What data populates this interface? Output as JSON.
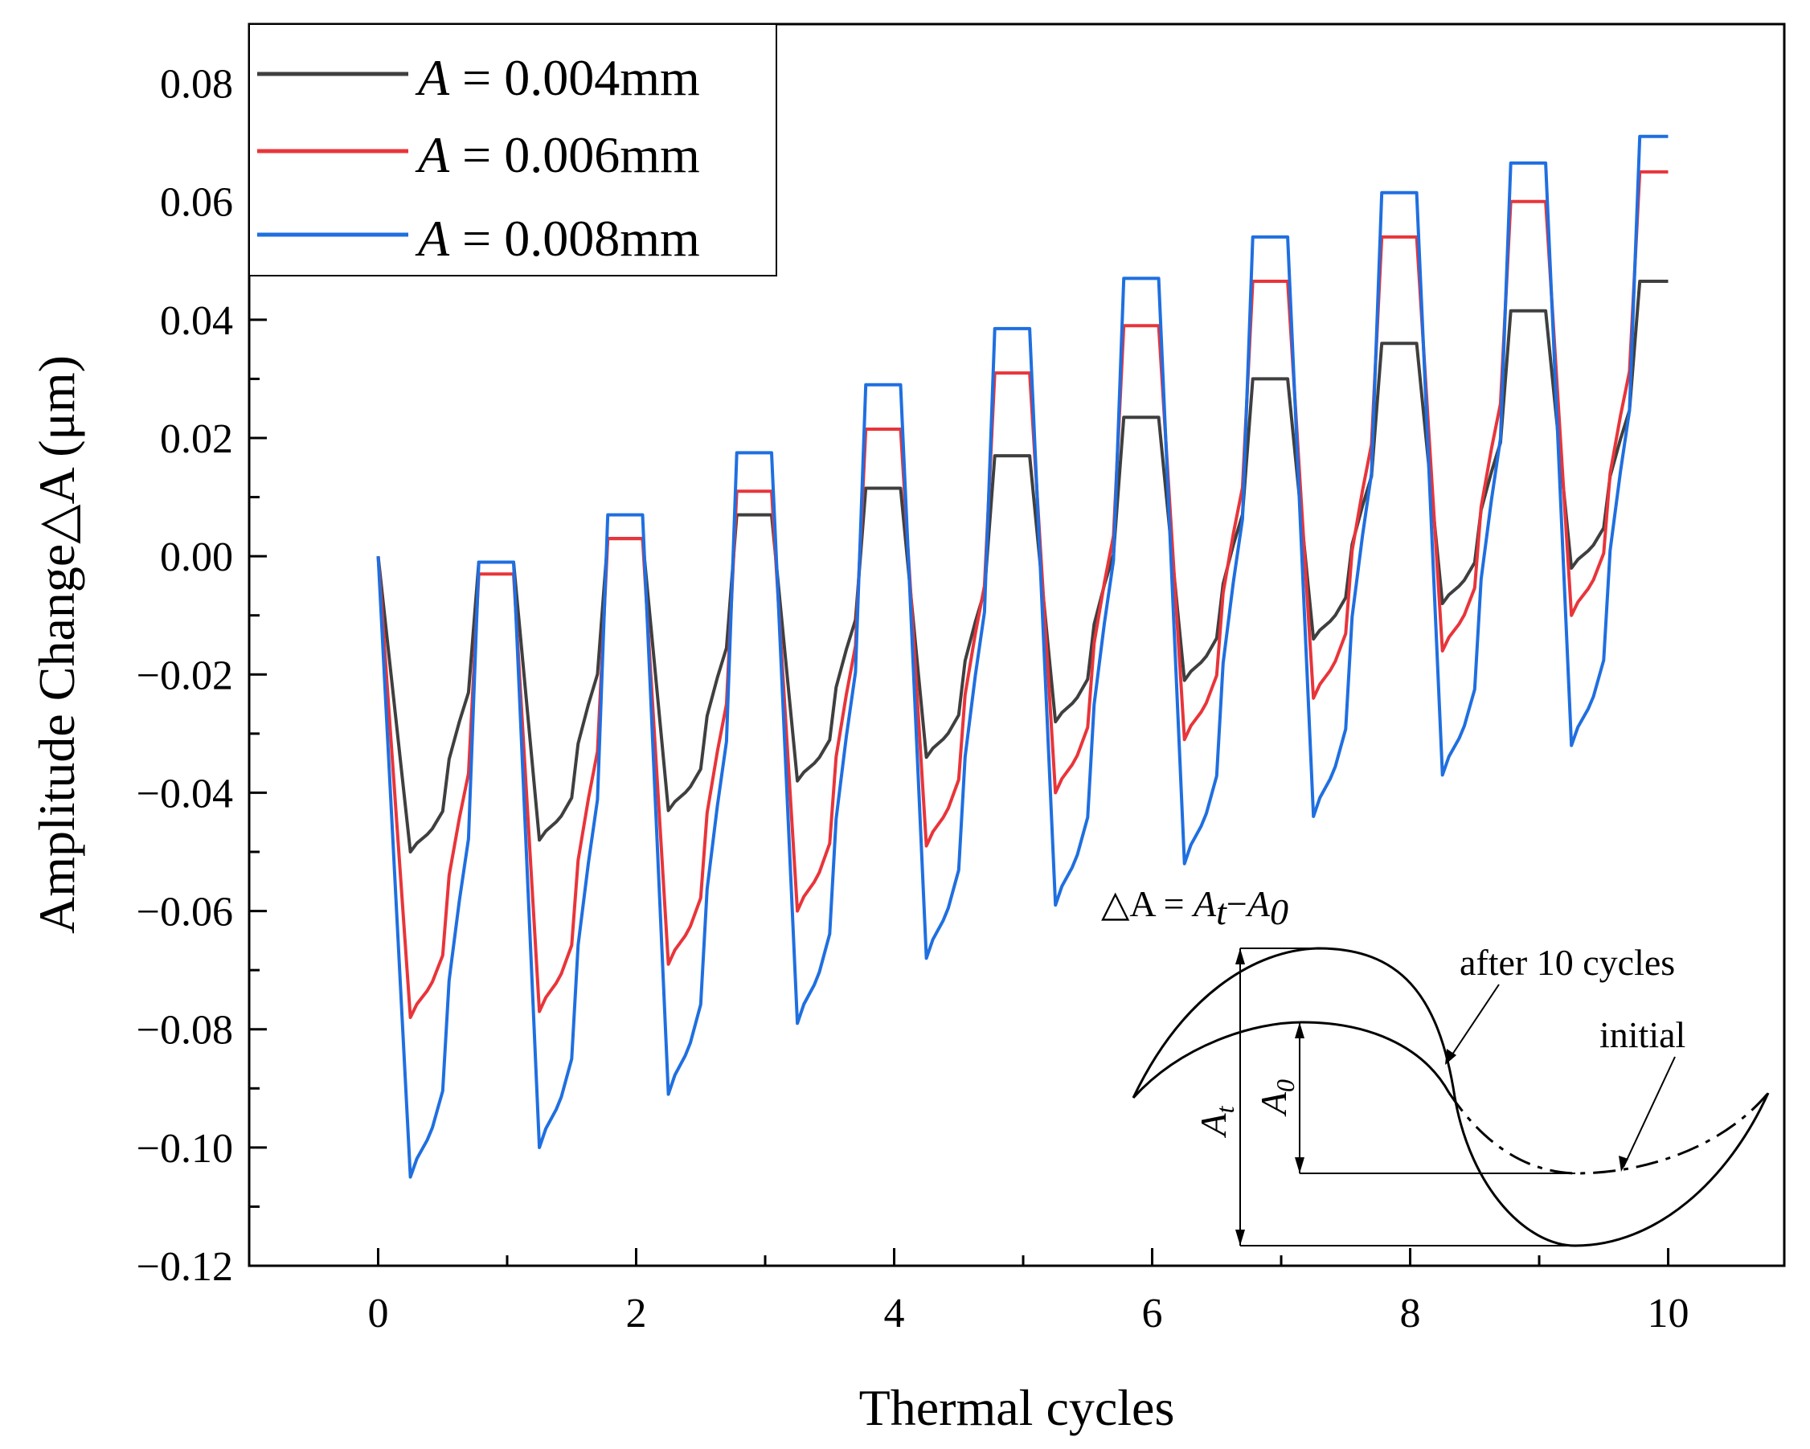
{
  "chart_data": {
    "type": "line",
    "xlabel": "Thermal cycles",
    "ylabel": "Amplitude Change△A (μm)",
    "xlim": [
      -1.0,
      10.9
    ],
    "ylim": [
      -0.12,
      0.09
    ],
    "xticks": [
      0,
      2,
      4,
      6,
      8,
      10
    ],
    "xtick_labels": [
      "0",
      "2",
      "4",
      "6",
      "8",
      "10"
    ],
    "yticks": [
      -0.12,
      -0.1,
      -0.08,
      -0.06,
      -0.04,
      -0.02,
      0.0,
      0.02,
      0.04,
      0.06,
      0.08
    ],
    "ytick_labels": [
      "−0.12",
      "−0.10",
      "−0.08",
      "−0.06",
      "−0.04",
      "−0.02",
      "0.00",
      "0.02",
      "0.04",
      "0.06",
      "0.08"
    ],
    "legend_position": "top-left",
    "series": [
      {
        "name": "A = 0.004mm",
        "legend_var": "A",
        "legend_rest": " = 0.004mm",
        "color": "#3f3f3f",
        "peaks": [
          -0.001,
          0.003,
          0.007,
          0.0115,
          0.017,
          0.0235,
          0.03,
          0.036,
          0.0415,
          0.0465
        ],
        "troughs": [
          -0.05,
          -0.048,
          -0.043,
          -0.038,
          -0.034,
          -0.028,
          -0.021,
          -0.014,
          -0.008,
          -0.002
        ]
      },
      {
        "name": "A = 0.006mm",
        "legend_var": "A",
        "legend_rest": " = 0.006mm",
        "color": "#e8353a",
        "peaks": [
          -0.003,
          0.003,
          0.011,
          0.0215,
          0.031,
          0.039,
          0.0465,
          0.054,
          0.06,
          0.065
        ],
        "troughs": [
          -0.078,
          -0.077,
          -0.069,
          -0.06,
          -0.049,
          -0.04,
          -0.031,
          -0.024,
          -0.016,
          -0.01
        ]
      },
      {
        "name": "A = 0.008mm",
        "legend_var": "A",
        "legend_rest": " = 0.008mm",
        "color": "#1f6fe0",
        "peaks": [
          -0.001,
          0.007,
          0.0175,
          0.029,
          0.0385,
          0.047,
          0.054,
          0.0615,
          0.0665,
          0.071
        ],
        "troughs": [
          -0.105,
          -0.1,
          -0.091,
          -0.079,
          -0.068,
          -0.059,
          -0.052,
          -0.044,
          -0.037,
          -0.032
        ]
      }
    ],
    "inset": {
      "formula_lhs": "△A",
      "formula_eq": " = ",
      "formula_at": "A",
      "formula_at_sub": "t",
      "formula_minus": "−",
      "formula_a0": "A",
      "formula_a0_sub": "0",
      "label_after": "after 10 cycles",
      "label_initial": "initial",
      "label_At": "A",
      "label_At_sub": "t",
      "label_A0": "A",
      "label_A0_sub": "0"
    }
  }
}
